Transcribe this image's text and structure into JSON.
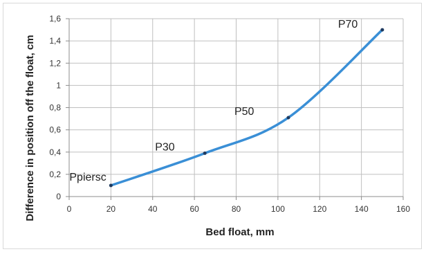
{
  "chart_data": {
    "type": "line",
    "title": "",
    "xlabel": "Bed float, mm",
    "ylabel": "Difference in position off the float, cm",
    "xlim": [
      0,
      160
    ],
    "ylim": [
      0,
      1.6
    ],
    "x_ticks": [
      "0",
      "20",
      "40",
      "60",
      "80",
      "100",
      "120",
      "140",
      "160"
    ],
    "y_ticks": [
      "0",
      "0,2",
      "0,4",
      "0,6",
      "0,8",
      "1",
      "1,2",
      "1,4",
      "1,6"
    ],
    "grid": true,
    "legend": "none",
    "series": [
      {
        "x": [
          20,
          65,
          105,
          150
        ],
        "y": [
          0.1,
          0.39,
          0.71,
          1.5
        ],
        "labels": [
          "Ppiersc",
          "P30",
          "P50",
          "P70"
        ]
      }
    ],
    "colors": {
      "line": "#3a8fd6",
      "marker": "#1f3a5f",
      "grid": "#bfbfbf",
      "axis": "#8c8c8c"
    }
  }
}
